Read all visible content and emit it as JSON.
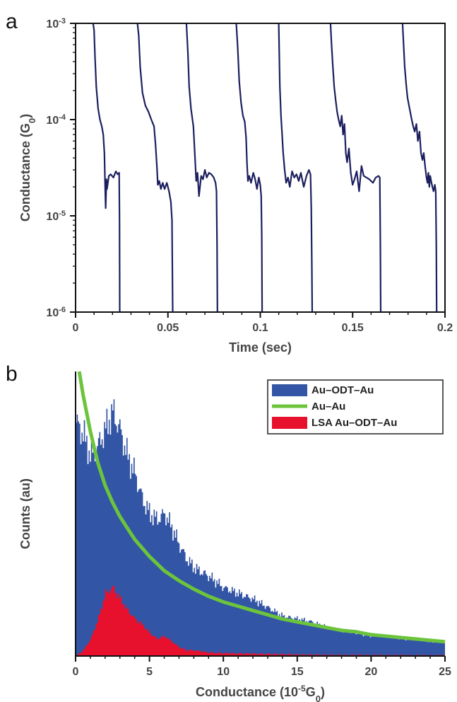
{
  "chart_data": [
    {
      "panel_label": "a",
      "type": "line",
      "xlabel": "Time (sec)",
      "ylabel": "Conductance (G0)",
      "ylabel_text": "Conductance (G",
      "ylabel_sub": "0",
      "ylabel_tail": ")",
      "xlim": [
        0,
        0.2
      ],
      "ylim": [
        1e-06,
        0.001
      ],
      "yscale": "log",
      "xticks": [
        0,
        0.05,
        0.1,
        0.15,
        0.2
      ],
      "xtick_labels": [
        "0",
        "0.05",
        "0.1",
        "0.15",
        "0.2"
      ],
      "yticks": [
        1e-06,
        1e-05,
        0.0001,
        0.001
      ],
      "ytick_labels": [
        {
          "base": "10",
          "exp": "-6"
        },
        {
          "base": "10",
          "exp": "-5"
        },
        {
          "base": "10",
          "exp": "-4"
        },
        {
          "base": "10",
          "exp": "-3"
        }
      ],
      "color": "#1c1f5e",
      "series": [
        {
          "x": [
            0.0095,
            0.01,
            0.0105,
            0.0112,
            0.0122,
            0.0132,
            0.0142,
            0.015,
            0.0156,
            0.016,
            0.0163,
            0.0167,
            0.017,
            0.018,
            0.019,
            0.0205,
            0.0218,
            0.0228,
            0.0236,
            0.0238,
            0.0239
          ],
          "y": [
            0.001,
            0.00085,
            0.00045,
            0.00022,
            0.00013,
            0.0001,
            8.5e-05,
            7e-05,
            4.5e-05,
            2.1e-05,
            1.2e-05,
            2.4e-05,
            1.9e-05,
            2.6e-05,
            2.7e-05,
            2.5e-05,
            2.9e-05,
            2.7e-05,
            2.8e-05,
            9e-06,
            1e-06
          ]
        },
        {
          "x": [
            0.0335,
            0.0342,
            0.035,
            0.0362,
            0.0378,
            0.0395,
            0.041,
            0.0425,
            0.0433,
            0.044,
            0.0445,
            0.0453,
            0.0462,
            0.0472,
            0.0482,
            0.0494,
            0.0506,
            0.0516,
            0.0522,
            0.0524,
            0.0526
          ],
          "y": [
            0.001,
            0.00075,
            0.00035,
            0.00019,
            0.00014,
            0.00012,
            0.0001,
            8.5e-05,
            5.5e-05,
            3.3e-05,
            2.1e-05,
            2.3e-05,
            1.9e-05,
            2.2e-05,
            1.9e-05,
            2.2e-05,
            1.8e-05,
            1.4e-05,
            9e-06,
            3e-06,
            1e-06
          ]
        },
        {
          "x": [
            0.06,
            0.0608,
            0.0615,
            0.0625,
            0.0638,
            0.0648,
            0.0653,
            0.066,
            0.0668,
            0.068,
            0.069,
            0.07,
            0.071,
            0.0722,
            0.0735,
            0.0748,
            0.0758,
            0.0763,
            0.0766,
            0.0768
          ],
          "y": [
            0.001,
            0.0005,
            0.00022,
            0.00013,
            8.5e-05,
            3.5e-05,
            2.3e-05,
            2.8e-05,
            1.6e-05,
            2.6e-05,
            2.4e-05,
            3e-05,
            2.5e-05,
            2.8e-05,
            2.7e-05,
            2.5e-05,
            2.2e-05,
            1.8e-05,
            5e-06,
            1e-06
          ]
        },
        {
          "x": [
            0.087,
            0.0878,
            0.0886,
            0.0896,
            0.0906,
            0.0916,
            0.0923,
            0.0928,
            0.0933,
            0.094,
            0.095,
            0.0962,
            0.0972,
            0.0982,
            0.0992,
            0.1,
            0.1005,
            0.1008,
            0.101
          ],
          "y": [
            0.001,
            0.00055,
            0.00025,
            0.00015,
            0.00011,
            9.5e-05,
            6.5e-05,
            3.5e-05,
            2.3e-05,
            2.6e-05,
            2.2e-05,
            2.8e-05,
            2.4e-05,
            1.9e-05,
            2.5e-05,
            2.1e-05,
            1.6e-05,
            6e-06,
            1e-06
          ]
        },
        {
          "x": [
            0.11,
            0.1106,
            0.1112,
            0.1118,
            0.1124,
            0.1132,
            0.114,
            0.115,
            0.116,
            0.1172,
            0.1184,
            0.1196,
            0.1208,
            0.122,
            0.1235,
            0.125,
            0.1263,
            0.1272,
            0.1276,
            0.1279,
            0.1281
          ],
          "y": [
            0.001,
            0.00022,
            0.00011,
            7e-05,
            4.5e-05,
            3e-05,
            2.2e-05,
            2.5e-05,
            2e-05,
            2.9e-05,
            2.5e-05,
            2.7e-05,
            2.3e-05,
            2.8e-05,
            2e-05,
            2.6e-05,
            3e-05,
            2.7e-05,
            1.2e-05,
            3e-06,
            1e-06
          ]
        },
        {
          "x": [
            0.138,
            0.1386,
            0.1393,
            0.14,
            0.1408,
            0.1416,
            0.1424,
            0.1433,
            0.1441,
            0.1448,
            0.1456,
            0.1463,
            0.147,
            0.148,
            0.149,
            0.15,
            0.151,
            0.1522,
            0.1535,
            0.1548,
            0.156,
            0.159,
            0.161,
            0.1625,
            0.164,
            0.1647,
            0.165,
            0.1652
          ],
          "y": [
            0.001,
            0.0006,
            0.00035,
            0.00022,
            0.00016,
            0.00012,
            0.0001,
            8.5e-05,
            0.00011,
            7e-05,
            9e-05,
            4.5e-05,
            3.6e-05,
            5e-05,
            2.8e-05,
            2.1e-05,
            2.4e-05,
            2.9e-05,
            1.8e-05,
            3.3e-05,
            2.6e-05,
            2.4e-05,
            2.2e-05,
            2.5e-05,
            2.6e-05,
            2.5e-05,
            5e-06,
            1e-06
          ]
        },
        {
          "x": [
            0.177,
            0.1776,
            0.1782,
            0.179,
            0.1797,
            0.1805,
            0.1812,
            0.182,
            0.1828,
            0.1836,
            0.1845,
            0.1853,
            0.1862,
            0.187,
            0.1878,
            0.1885,
            0.1893,
            0.19,
            0.1905,
            0.191,
            0.1915,
            0.192,
            0.1925,
            0.1932,
            0.1938,
            0.1945,
            0.195,
            0.1953,
            0.1955
          ],
          "y": [
            0.001,
            0.0006,
            0.00035,
            0.00023,
            0.00017,
            0.00014,
            0.00012,
            0.0001,
            8.5e-05,
            7.5e-05,
            9e-05,
            6e-05,
            7.5e-05,
            4.5e-05,
            3.8e-05,
            4.5e-05,
            3.2e-05,
            2.5e-05,
            2.2e-05,
            2.8e-05,
            2e-05,
            2.6e-05,
            2.3e-05,
            2e-05,
            1.8e-05,
            2.1e-05,
            1.8e-05,
            5e-06,
            1e-06
          ]
        }
      ]
    },
    {
      "panel_label": "b",
      "type": "area",
      "xlabel": "Conductance (10-5G0)",
      "xlabel_pre": "Conductance (10",
      "xlabel_sup": "-5",
      "xlabel_mid": "G",
      "xlabel_sub": "0",
      "xlabel_tail": ")",
      "ylabel": "Counts (au)",
      "xlim": [
        0,
        25
      ],
      "ylim": [
        0,
        1
      ],
      "xticks": [
        0,
        5,
        10,
        15,
        20,
        25
      ],
      "xtick_labels": [
        "0",
        "5",
        "10",
        "15",
        "20",
        "25"
      ],
      "legend": {
        "position": "top-right",
        "entries": [
          "Au–ODT–Au",
          "Au–Au",
          "LSA Au–ODT–Au"
        ]
      },
      "series": [
        {
          "name": "Au–ODT–Au",
          "kind": "filled-histogram",
          "color": "#3355a5",
          "x": [
            0,
            0.5,
            1,
            1.5,
            2,
            2.5,
            3,
            3.5,
            4,
            4.5,
            5,
            5.5,
            6,
            6.5,
            7,
            7.5,
            8,
            9,
            10,
            11,
            12,
            13,
            14,
            15,
            16,
            17,
            18,
            19,
            20,
            21,
            22,
            23,
            24,
            25
          ],
          "y": [
            0.82,
            0.78,
            0.7,
            0.74,
            0.8,
            0.86,
            0.79,
            0.7,
            0.64,
            0.55,
            0.5,
            0.48,
            0.5,
            0.45,
            0.39,
            0.34,
            0.31,
            0.28,
            0.24,
            0.22,
            0.2,
            0.17,
            0.14,
            0.13,
            0.12,
            0.1,
            0.09,
            0.08,
            0.07,
            0.07,
            0.06,
            0.06,
            0.05,
            0.05
          ]
        },
        {
          "name": "Au–Au",
          "kind": "line",
          "color": "#6cc43c",
          "x": [
            0.25,
            0.5,
            1,
            1.5,
            2,
            2.5,
            3,
            3.5,
            4,
            5,
            6,
            7,
            8,
            9,
            10,
            11,
            12,
            13,
            14,
            15,
            16,
            17,
            18,
            19,
            20,
            21,
            22,
            23,
            24,
            25
          ],
          "y": [
            1.0,
            0.92,
            0.79,
            0.68,
            0.6,
            0.54,
            0.49,
            0.45,
            0.41,
            0.35,
            0.3,
            0.265,
            0.235,
            0.21,
            0.19,
            0.175,
            0.16,
            0.145,
            0.13,
            0.12,
            0.11,
            0.1,
            0.09,
            0.085,
            0.075,
            0.07,
            0.065,
            0.06,
            0.055,
            0.05
          ]
        },
        {
          "name": "LSA Au–ODT–Au",
          "kind": "filled-histogram",
          "color": "#e8112d",
          "x": [
            0,
            0.5,
            1,
            1.5,
            2,
            2.5,
            3,
            3.5,
            4,
            4.5,
            5,
            5.5,
            6,
            6.5,
            7,
            7.5,
            8,
            9,
            10,
            12,
            14,
            16,
            20,
            25
          ],
          "y": [
            0,
            0.02,
            0.06,
            0.13,
            0.22,
            0.24,
            0.2,
            0.16,
            0.13,
            0.11,
            0.08,
            0.06,
            0.07,
            0.05,
            0.03,
            0.02,
            0.02,
            0.012,
            0.01,
            0.008,
            0.006,
            0.004,
            0.003,
            0.002
          ]
        }
      ]
    }
  ]
}
